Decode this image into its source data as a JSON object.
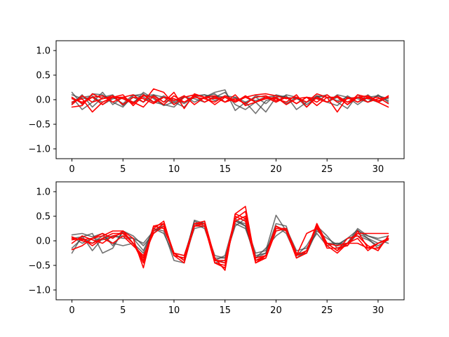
{
  "chart_data": [
    {
      "type": "line",
      "title": "",
      "xlabel": "",
      "ylabel": "",
      "xlim": [
        -1.55,
        32.55
      ],
      "ylim": [
        -1.2,
        1.2
      ],
      "xticks": [
        0,
        5,
        10,
        15,
        20,
        25,
        30
      ],
      "xtick_labels": [
        "0",
        "5",
        "10",
        "15",
        "20",
        "25",
        "30"
      ],
      "yticks": [
        -1.0,
        -0.5,
        0.0,
        0.5,
        1.0
      ],
      "ytick_labels": [
        "−1.0",
        "−0.5",
        "0.0",
        "0.5",
        "1.0"
      ],
      "grid": false,
      "colors": {
        "gray": "#444444",
        "red": "#ff0000"
      },
      "x": [
        0,
        1,
        2,
        3,
        4,
        5,
        6,
        7,
        8,
        9,
        10,
        11,
        12,
        13,
        14,
        15,
        16,
        17,
        18,
        19,
        20,
        21,
        22,
        23,
        24,
        25,
        26,
        27,
        28,
        29,
        30,
        31
      ],
      "series": [
        {
          "color": "gray",
          "values": [
            0.15,
            -0.1,
            0.12,
            0.1,
            -0.05,
            -0.15,
            0.08,
            0.12,
            -0.05,
            -0.1,
            -0.15,
            0.05,
            0.1,
            0.05,
            0.15,
            0.2,
            -0.22,
            -0.05,
            -0.28,
            -0.02,
            0.05,
            0.08,
            -0.2,
            -0.05,
            0.05,
            0.1,
            -0.05,
            -0.18,
            0.1,
            -0.05,
            0.1,
            -0.05
          ]
        },
        {
          "color": "gray",
          "values": [
            0.05,
            -0.2,
            -0.05,
            0.15,
            -0.1,
            0.05,
            -0.08,
            0.15,
            0.02,
            -0.12,
            -0.05,
            -0.15,
            0.08,
            0.1,
            0.05,
            0.15,
            -0.1,
            -0.2,
            -0.05,
            -0.25,
            0.05,
            -0.08,
            0.05,
            -0.15,
            0.08,
            -0.05,
            0.1,
            0.05,
            -0.1,
            0.05,
            0.08,
            0.02
          ]
        },
        {
          "color": "gray",
          "values": [
            -0.08,
            0.1,
            -0.15,
            0.05,
            0.1,
            -0.12,
            0.05,
            -0.05,
            0.1,
            0.05,
            -0.1,
            0.08,
            -0.05,
            0.05,
            0.12,
            -0.05,
            0.05,
            -0.1,
            0.08,
            0.05,
            -0.05,
            0.1,
            0.05,
            -0.1,
            0.05,
            -0.05,
            -0.12,
            0.08,
            -0.05,
            0.1,
            -0.05,
            0.05
          ]
        },
        {
          "color": "gray",
          "values": [
            0.1,
            0.02,
            0.05,
            -0.05,
            0.05,
            -0.08,
            0.1,
            0.05,
            -0.05,
            0.08,
            -0.05,
            0.05,
            0.02,
            -0.05,
            0.08,
            0.05,
            -0.05,
            0.05,
            -0.02,
            0.05,
            0.08,
            0.05,
            -0.08,
            0.05,
            0.02,
            -0.05,
            0.05,
            -0.05,
            0.05,
            0.02,
            -0.05,
            0.05
          ]
        },
        {
          "color": "gray",
          "values": [
            -0.05,
            0.05,
            0.08,
            -0.1,
            0.02,
            0.05,
            -0.05,
            0.08,
            0.1,
            -0.05,
            0.02,
            -0.08,
            0.05,
            0.1,
            -0.02,
            0.08,
            0.05,
            -0.05,
            0.05,
            -0.08,
            0.1,
            0.05,
            0.02,
            -0.05,
            0.08,
            0.05,
            -0.02,
            0.05,
            0.02,
            -0.05,
            0.08,
            -0.02
          ]
        },
        {
          "color": "red",
          "values": [
            -0.15,
            -0.12,
            0.12,
            0.02,
            0.05,
            0.05,
            0.1,
            -0.05,
            0.22,
            0.15,
            -0.1,
            0.05,
            0.1,
            0.05,
            0.02,
            0.05,
            -0.05,
            0.05,
            0.1,
            0.12,
            0.08,
            0.02,
            0.05,
            -0.05,
            0.12,
            0.05,
            0.05,
            -0.1,
            0.1,
            0.05,
            -0.02,
            0.05
          ]
        },
        {
          "color": "red",
          "values": [
            -0.05,
            0.02,
            -0.25,
            -0.05,
            0.05,
            0.1,
            -0.12,
            0.08,
            0.05,
            -0.1,
            0.08,
            -0.05,
            0.08,
            -0.05,
            0.05,
            -0.05,
            0.1,
            -0.12,
            -0.05,
            0.05,
            -0.05,
            0.05,
            -0.08,
            0.05,
            -0.12,
            0.05,
            -0.25,
            0.05,
            -0.05,
            0.05,
            -0.05,
            -0.15
          ]
        },
        {
          "color": "red",
          "values": [
            0.05,
            -0.08,
            0.05,
            0.08,
            -0.05,
            0.05,
            -0.05,
            -0.15,
            0.08,
            -0.05,
            0.15,
            -0.18,
            0.12,
            0.05,
            -0.1,
            0.05,
            -0.05,
            0.08,
            -0.05,
            0.05,
            0.02,
            -0.05,
            0.1,
            -0.15,
            0.05,
            -0.05,
            0.08,
            -0.05,
            0.05,
            0.08,
            -0.05,
            0.08
          ]
        },
        {
          "color": "red",
          "values": [
            -0.1,
            0.08,
            -0.05,
            0.02,
            0.08,
            -0.1,
            0.05,
            0.02,
            -0.08,
            0.05,
            -0.02,
            0.08,
            -0.1,
            0.05,
            0.08,
            -0.05,
            0.02,
            -0.08,
            0.05,
            0.08,
            -0.02,
            0.05,
            -0.08,
            0.05,
            0.02,
            -0.05,
            0.08,
            -0.1,
            0.05,
            0.02,
            0.05,
            -0.08
          ]
        },
        {
          "color": "red",
          "values": [
            0.02,
            -0.05,
            0.05,
            -0.1,
            0.05,
            0.02,
            -0.08,
            0.1,
            -0.05,
            0.05,
            0.02,
            -0.05,
            0.05,
            0.02,
            -0.05,
            0.08,
            -0.02,
            0.05,
            -0.05,
            0.02,
            0.05,
            -0.1,
            0.02,
            0.05,
            -0.05,
            0.1,
            -0.05,
            0.02,
            0.05,
            -0.05,
            0.02,
            0.05
          ]
        }
      ]
    },
    {
      "type": "line",
      "title": "",
      "xlabel": "",
      "ylabel": "",
      "xlim": [
        -1.55,
        32.55
      ],
      "ylim": [
        -1.2,
        1.2
      ],
      "xticks": [
        0,
        5,
        10,
        15,
        20,
        25,
        30
      ],
      "xtick_labels": [
        "0",
        "5",
        "10",
        "15",
        "20",
        "25",
        "30"
      ],
      "yticks": [
        -1.0,
        -0.5,
        0.0,
        0.5,
        1.0
      ],
      "ytick_labels": [
        "−1.0",
        "−0.5",
        "0.0",
        "0.5",
        "1.0"
      ],
      "grid": false,
      "colors": {
        "gray": "#444444",
        "red": "#ff0000"
      },
      "x": [
        0,
        1,
        2,
        3,
        4,
        5,
        6,
        7,
        8,
        9,
        10,
        11,
        12,
        13,
        14,
        15,
        16,
        17,
        18,
        19,
        20,
        21,
        22,
        23,
        24,
        25,
        26,
        27,
        28,
        29,
        30,
        31
      ],
      "series": [
        {
          "color": "gray",
          "values": [
            0.12,
            0.15,
            0.08,
            0.15,
            -0.1,
            0.18,
            -0.05,
            -0.35,
            0.3,
            0.25,
            -0.25,
            -0.4,
            0.42,
            0.35,
            -0.45,
            -0.4,
            0.4,
            0.35,
            -0.25,
            -0.2,
            0.52,
            0.2,
            -0.3,
            -0.1,
            0.25,
            -0.05,
            -0.1,
            0.05,
            0.22,
            0.05,
            -0.15,
            0.05
          ]
        },
        {
          "color": "gray",
          "values": [
            -0.25,
            0.1,
            -0.2,
            0.05,
            0.1,
            0.05,
            0.05,
            -0.2,
            0.25,
            0.15,
            -0.3,
            -0.35,
            0.4,
            0.3,
            -0.4,
            -0.3,
            0.45,
            0.3,
            -0.35,
            -0.15,
            0.1,
            0.25,
            -0.2,
            -0.15,
            0.15,
            -0.1,
            -0.05,
            -0.05,
            0.25,
            0.1,
            0.02,
            -0.05
          ]
        },
        {
          "color": "gray",
          "values": [
            0.05,
            0.08,
            0.15,
            -0.25,
            -0.15,
            0.2,
            0.1,
            -0.1,
            0.15,
            0.35,
            -0.25,
            -0.3,
            0.35,
            0.25,
            -0.35,
            -0.35,
            0.35,
            0.25,
            -0.3,
            -0.25,
            0.35,
            0.3,
            -0.35,
            -0.2,
            0.3,
            0.1,
            -0.15,
            -0.05,
            0.2,
            0.1,
            0.05,
            0.1
          ]
        },
        {
          "color": "gray",
          "values": [
            -0.15,
            0.05,
            -0.05,
            0.1,
            -0.05,
            -0.1,
            -0.05,
            -0.25,
            0.25,
            0.2,
            -0.4,
            -0.45,
            0.3,
            0.4,
            -0.4,
            -0.45,
            0.4,
            0.3,
            -0.4,
            -0.3,
            0.2,
            0.25,
            -0.25,
            -0.25,
            0.2,
            0.05,
            -0.08,
            0.05,
            0.1,
            0.02,
            -0.1,
            0.02
          ]
        },
        {
          "color": "gray",
          "values": [
            0.08,
            -0.05,
            0.05,
            0.02,
            0.08,
            0.1,
            0.05,
            -0.05,
            0.2,
            0.3,
            -0.3,
            -0.35,
            0.25,
            0.3,
            -0.3,
            -0.35,
            0.3,
            0.45,
            -0.35,
            -0.25,
            0.3,
            0.15,
            -0.3,
            -0.25,
            0.25,
            -0.05,
            -0.05,
            -0.1,
            0.15,
            0.05,
            -0.05,
            0.05
          ]
        },
        {
          "color": "red",
          "values": [
            0.05,
            0.02,
            0.05,
            0.1,
            0.2,
            0.2,
            0.05,
            -0.55,
            0.3,
            0.35,
            -0.25,
            -0.4,
            0.3,
            0.35,
            -0.45,
            -0.55,
            0.55,
            0.7,
            -0.45,
            -0.35,
            0.25,
            0.25,
            -0.3,
            -0.2,
            0.35,
            -0.1,
            -0.25,
            -0.05,
            0.15,
            0.15,
            0.15,
            0.15
          ]
        },
        {
          "color": "red",
          "values": [
            -0.18,
            -0.1,
            0.05,
            0.15,
            0.05,
            0.2,
            -0.05,
            -0.35,
            0.25,
            0.4,
            -0.3,
            -0.35,
            0.35,
            0.4,
            -0.35,
            -0.6,
            0.55,
            0.45,
            -0.35,
            -0.3,
            0.3,
            0.2,
            -0.35,
            -0.25,
            0.3,
            -0.15,
            -0.15,
            -0.1,
            0.2,
            -0.15,
            -0.05,
            0.05
          ]
        },
        {
          "color": "red",
          "values": [
            0.02,
            0.05,
            -0.1,
            0.05,
            0.15,
            0.15,
            -0.05,
            -0.45,
            0.3,
            0.25,
            -0.25,
            -0.3,
            0.3,
            0.3,
            -0.45,
            -0.5,
            0.45,
            0.6,
            -0.4,
            -0.3,
            0.25,
            0.25,
            -0.3,
            0.15,
            0.25,
            -0.05,
            -0.2,
            -0.05,
            -0.05,
            -0.15,
            -0.15,
            0.05
          ]
        },
        {
          "color": "red",
          "values": [
            -0.05,
            0.1,
            0.02,
            -0.05,
            0.1,
            0.15,
            -0.05,
            -0.4,
            0.2,
            0.35,
            -0.3,
            -0.45,
            0.35,
            0.35,
            -0.4,
            -0.4,
            0.5,
            0.4,
            -0.45,
            -0.3,
            0.3,
            0.2,
            -0.3,
            -0.2,
            0.3,
            -0.05,
            -0.2,
            0.05,
            0.1,
            -0.1,
            -0.2,
            0.1
          ]
        },
        {
          "color": "red",
          "values": [
            0.08,
            0.0,
            -0.05,
            0.05,
            -0.05,
            0.1,
            -0.1,
            -0.3,
            0.15,
            0.3,
            -0.25,
            -0.4,
            0.3,
            0.35,
            -0.4,
            -0.45,
            0.4,
            0.5,
            -0.4,
            -0.35,
            0.2,
            0.25,
            -0.25,
            -0.25,
            0.35,
            -0.05,
            -0.1,
            -0.05,
            0.05,
            -0.2,
            -0.05,
            0.02
          ]
        }
      ]
    }
  ]
}
